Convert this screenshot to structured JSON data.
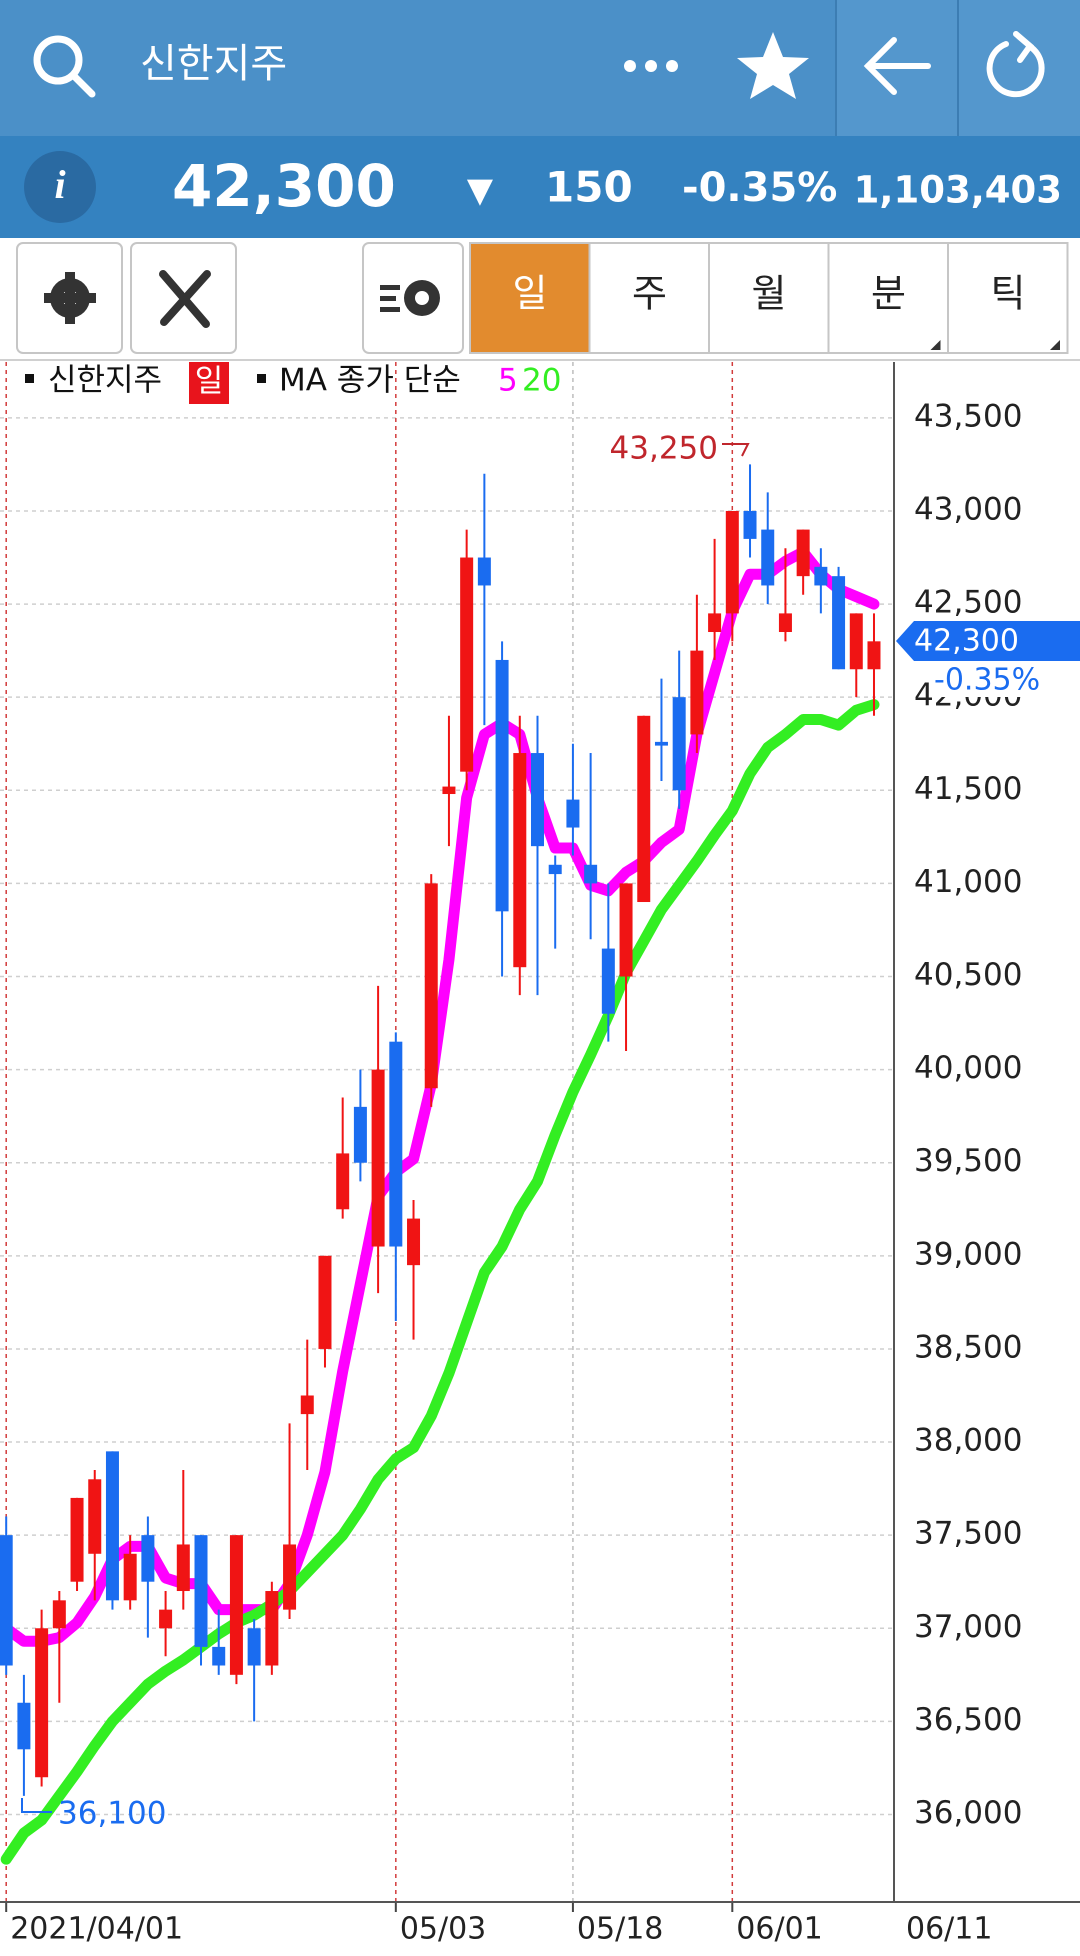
{
  "header": {
    "title": "신한지주"
  },
  "quote": {
    "info": "i",
    "price": "42,300",
    "arrow": "▼",
    "change": "150",
    "change_pct": "-0.35%",
    "volume": "1,103,403"
  },
  "tabs": [
    "일",
    "주",
    "월",
    "분",
    "틱"
  ],
  "chart_data": {
    "type": "candlestick",
    "legend": {
      "name": "신한지주",
      "period": "일",
      "ma_label": "MA 종가 단순"
    },
    "categories": [
      "2021/04/01",
      null,
      null,
      null,
      null,
      null,
      null,
      null,
      null,
      null,
      null,
      null,
      null,
      null,
      null,
      null,
      null,
      null,
      null,
      null,
      null,
      null,
      "05/03",
      null,
      null,
      null,
      null,
      null,
      null,
      null,
      null,
      null,
      "05/18",
      null,
      null,
      null,
      null,
      null,
      null,
      null,
      null,
      "06/01",
      null,
      null,
      null,
      null,
      null,
      null,
      null,
      null
    ],
    "open": [
      37500,
      36600,
      36200,
      37000,
      37250,
      37400,
      37950,
      37150,
      37500,
      37000,
      37200,
      37500,
      36900,
      36750,
      37000,
      36800,
      37100,
      38150,
      38500,
      39250,
      39800,
      39050,
      40150,
      38950,
      39900,
      41480,
      41600,
      42750,
      42200,
      40550,
      41700,
      41100,
      41450,
      41100,
      40650,
      40500,
      40900,
      41760,
      42000,
      41800,
      42350,
      42450,
      43000,
      42900,
      42350,
      42650,
      42700,
      42650,
      42150,
      42150
    ],
    "high": [
      37600,
      36750,
      37100,
      37200,
      37700,
      37850,
      37950,
      37500,
      37600,
      37200,
      37850,
      37500,
      37100,
      37500,
      37050,
      37250,
      38100,
      38550,
      39000,
      39850,
      40000,
      40450,
      40200,
      39300,
      41050,
      41900,
      42900,
      43200,
      42300,
      41900,
      41900,
      41150,
      41750,
      41700,
      41000,
      41000,
      41900,
      42100,
      42250,
      42550,
      42850,
      43000,
      43250,
      43100,
      42800,
      42900,
      42800,
      42700,
      42450,
      42450
    ],
    "low": [
      36750,
      36100,
      36150,
      36600,
      37200,
      37150,
      37100,
      37100,
      36950,
      36850,
      37100,
      36800,
      36750,
      36700,
      36500,
      36750,
      37050,
      37850,
      38400,
      39200,
      39400,
      38800,
      38650,
      38550,
      39800,
      41200,
      41500,
      41850,
      40500,
      40400,
      40400,
      40650,
      41150,
      40700,
      40150,
      40100,
      40900,
      41550,
      41400,
      41700,
      42200,
      42300,
      42750,
      42500,
      42300,
      42550,
      42450,
      42150,
      42000,
      41900
    ],
    "close": [
      36800,
      36350,
      37000,
      37150,
      37700,
      37800,
      37150,
      37400,
      37250,
      37100,
      37450,
      36900,
      36800,
      37500,
      36800,
      37200,
      37450,
      38250,
      39000,
      39550,
      39500,
      40000,
      39050,
      39200,
      41000,
      41520,
      42750,
      42600,
      40850,
      41700,
      41200,
      41050,
      41300,
      41000,
      40300,
      41000,
      41900,
      41740,
      41500,
      42250,
      42450,
      43000,
      42850,
      42600,
      42450,
      42900,
      42600,
      42150,
      42450,
      42300
    ],
    "up_color": "#f01414",
    "down_color": "#1a6cf0",
    "series": [
      {
        "name": "5",
        "color": "#ff00ff",
        "values": [
          37000,
          36930,
          36930,
          36950,
          37030,
          37170,
          37370,
          37440,
          37440,
          37270,
          37240,
          37240,
          37100,
          37100,
          37100,
          37100,
          37240,
          37500,
          37840,
          38380,
          38850,
          39320,
          39450,
          39520,
          39920,
          40590,
          41460,
          41800,
          41860,
          41800,
          41460,
          41190,
          41190,
          40990,
          40960,
          41060,
          41120,
          41220,
          41290,
          41800,
          42130,
          42460,
          42660,
          42660,
          42730,
          42780,
          42660,
          42580,
          42540,
          42500
        ]
      },
      {
        "name": "20",
        "color": "#33ee22",
        "values": [
          35760,
          35900,
          35970,
          36100,
          36230,
          36370,
          36500,
          36600,
          36700,
          36770,
          36830,
          36900,
          36970,
          37030,
          37070,
          37130,
          37200,
          37300,
          37400,
          37500,
          37640,
          37800,
          37910,
          37970,
          38140,
          38370,
          38640,
          38910,
          39050,
          39250,
          39400,
          39650,
          39880,
          40080,
          40290,
          40520,
          40690,
          40860,
          40990,
          41120,
          41260,
          41390,
          41590,
          41730,
          41800,
          41880,
          41880,
          41850,
          41930,
          41960
        ]
      }
    ],
    "ylim": [
      35530,
      43800
    ],
    "yticks": [
      {
        "value": 36000,
        "label": "36,000"
      },
      {
        "value": 36500,
        "label": "36,500"
      },
      {
        "value": 37000,
        "label": "37,000"
      },
      {
        "value": 37500,
        "label": "37,500"
      },
      {
        "value": 38000,
        "label": "38,000"
      },
      {
        "value": 38500,
        "label": "38,500"
      },
      {
        "value": 39000,
        "label": "39,000"
      },
      {
        "value": 39500,
        "label": "39,500"
      },
      {
        "value": 40000,
        "label": "40,000"
      },
      {
        "value": 40500,
        "label": "40,500"
      },
      {
        "value": 41000,
        "label": "41,000"
      },
      {
        "value": 41500,
        "label": "41,500"
      },
      {
        "value": 42000,
        "label": "42,000"
      },
      {
        "value": 42500,
        "label": "42,500"
      },
      {
        "value": 43000,
        "label": "43,000"
      },
      {
        "value": 43500,
        "label": "43,500"
      }
    ],
    "grid": true,
    "annotations": {
      "max": "43,250",
      "min": "36,100",
      "last_date": "06/11"
    }
  }
}
